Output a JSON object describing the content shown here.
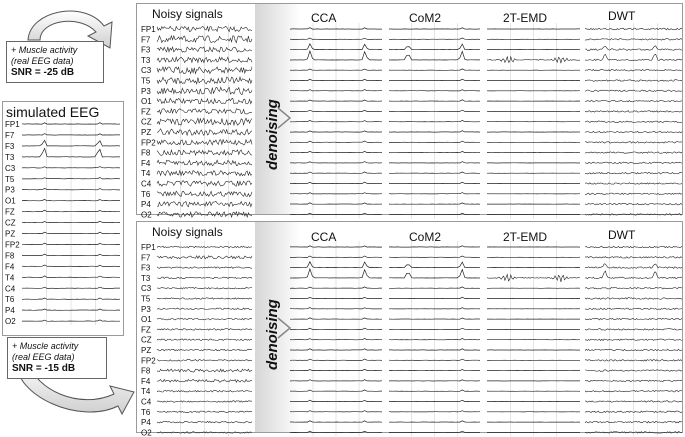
{
  "channels": [
    "FP1",
    "F7",
    "F3",
    "T3",
    "C3",
    "T5",
    "P3",
    "O1",
    "FZ",
    "CZ",
    "PZ",
    "FP2",
    "F8",
    "F4",
    "T4",
    "C4",
    "T6",
    "P4",
    "O2"
  ],
  "simulated": {
    "title": "simulated EEG"
  },
  "top": {
    "box": {
      "line1": "+ Muscle activity",
      "line2": "(real EEG data)",
      "snr": "SNR = -25 dB"
    },
    "noisy_title": "Noisy signals",
    "denoising": "denoising",
    "methods": [
      "CCA",
      "CoM2",
      "2T-EMD",
      "DWT"
    ]
  },
  "bottom": {
    "box": {
      "line1": "+ Muscle activity",
      "line2": "(real EEG data)",
      "snr": "SNR = -15 dB"
    },
    "noisy_title": "Noisy signals",
    "denoising": "denoising",
    "methods": [
      "CCA",
      "CoM2",
      "2T-EMD",
      "DWT"
    ]
  },
  "colors": {
    "trace": "#222222",
    "grid": "#c8c8c8",
    "panel_border": "#9a9a9a",
    "gradient": "#d6d6d6"
  }
}
